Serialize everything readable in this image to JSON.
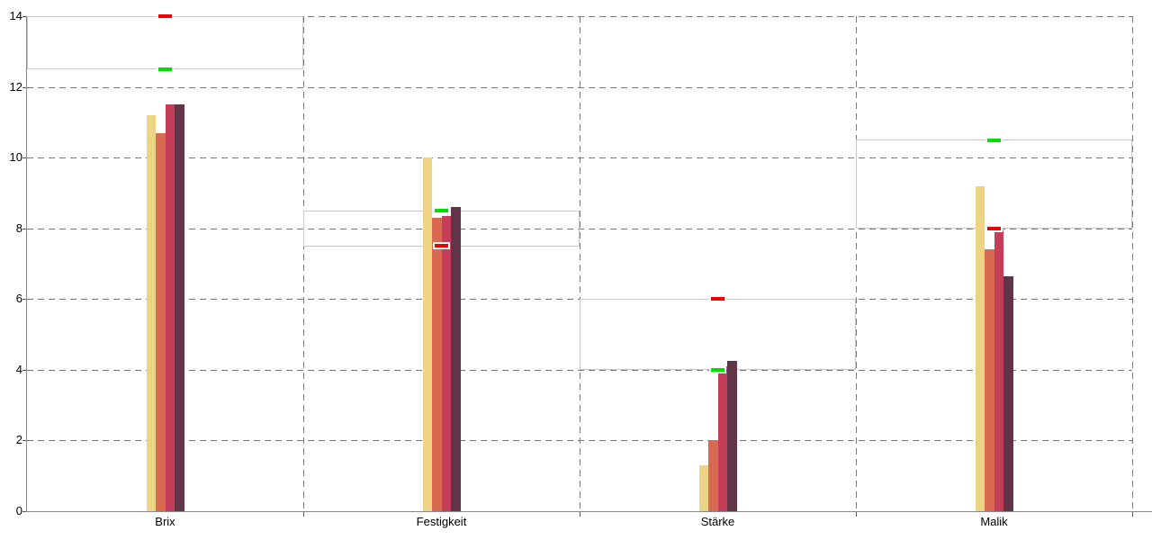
{
  "chart_data": {
    "type": "bar",
    "title": "",
    "legend": "none",
    "categories": [
      "Brix",
      "Festigkeit",
      "Stärke",
      "Malik"
    ],
    "series": [
      {
        "color": "#ecd484",
        "values": [
          11.2,
          10.0,
          1.3,
          9.2
        ]
      },
      {
        "color": "#d86a52",
        "values": [
          10.7,
          8.3,
          2.0,
          7.4
        ]
      },
      {
        "color": "#c43e5a",
        "values": [
          11.5,
          8.35,
          4.1,
          7.95
        ]
      },
      {
        "color": "#613448",
        "values": [
          11.5,
          8.6,
          4.25,
          6.65
        ]
      }
    ],
    "target_markers": [
      {
        "category": "Brix",
        "green": 12.5,
        "red": 14.0
      },
      {
        "category": "Festigkeit",
        "green": 8.5,
        "red": 7.5
      },
      {
        "category": "Stärke",
        "green": 4.0,
        "red": 6.0
      },
      {
        "category": "Malik",
        "green": 10.5,
        "red": 8.0
      }
    ],
    "range_bands": [
      {
        "category": "Brix",
        "low": 12.5,
        "high": 14.0
      },
      {
        "category": "Festigkeit",
        "low": 7.5,
        "high": 8.5
      },
      {
        "category": "Stärke",
        "low": 4.0,
        "high": 6.0
      },
      {
        "category": "Malik",
        "low": 8.0,
        "high": 10.5
      }
    ],
    "ylim": [
      0,
      14
    ],
    "yticks": [
      0,
      2,
      4,
      6,
      8,
      10,
      12,
      14
    ],
    "grid": "dashed horizontal lines at every y tick; dashed vertical lines at category panel boundaries",
    "colors": {
      "marker_green": "#00e000",
      "marker_red": "#ee0000",
      "band_outline": "#c9c9c9",
      "gridline": "#7a7a7a",
      "axis": "#888888",
      "label_text": "#000000",
      "background": "#ffffff"
    }
  }
}
